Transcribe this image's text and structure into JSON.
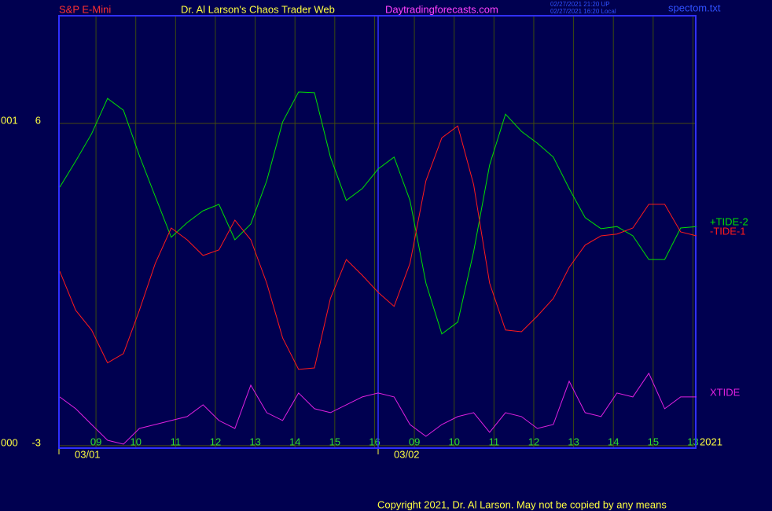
{
  "chart_data": {
    "type": "line",
    "instrument": "S&P E-Mini",
    "title": "Dr. Al Larson's Chaos Trader Web",
    "site": "Daytradingforecasts.com",
    "timestamps": [
      "02/27/2021 21:20 UP",
      "02/27/2021 16:20 Local"
    ],
    "file": "spectom.txt",
    "year": "2021",
    "copyright": "Copyright 2021, Dr. Al Larson. May not be copied by any means",
    "xlim": [
      -0.93,
      15.07
    ],
    "ylim": [
      -3.07,
      9.01
    ],
    "yticks": [
      6,
      -3
    ],
    "axis_codes": [
      {
        "value": 6,
        "label": "001"
      },
      {
        "value": -3,
        "label": "000"
      }
    ],
    "xticks": [
      {
        "value": 0,
        "label": "09"
      },
      {
        "value": 1,
        "label": "10"
      },
      {
        "value": 2,
        "label": "11"
      },
      {
        "value": 3,
        "label": "12"
      },
      {
        "value": 4,
        "label": "13"
      },
      {
        "value": 5,
        "label": "14"
      },
      {
        "value": 6,
        "label": "15"
      },
      {
        "value": 7,
        "label": "16"
      },
      {
        "value": 8,
        "label": "09"
      },
      {
        "value": 9,
        "label": "10"
      },
      {
        "value": 10,
        "label": "11"
      },
      {
        "value": 11,
        "label": "12"
      },
      {
        "value": 12,
        "label": "13"
      },
      {
        "value": 13,
        "label": "14"
      },
      {
        "value": 14,
        "label": "15"
      },
      {
        "value": 15,
        "label": "13"
      }
    ],
    "date_markers": [
      {
        "value": -0.93,
        "label": "03/01"
      },
      {
        "value": 7.09,
        "label": "03/02"
      }
    ],
    "grid": true,
    "x": [
      -0.91,
      -0.51,
      -0.11,
      0.29,
      0.69,
      1.09,
      1.49,
      1.89,
      2.29,
      2.69,
      3.09,
      3.49,
      3.89,
      4.29,
      4.69,
      5.09,
      5.49,
      5.89,
      6.29,
      6.69,
      7.09,
      7.49,
      7.89,
      8.29,
      8.69,
      9.09,
      9.49,
      9.89,
      10.29,
      10.69,
      11.09,
      11.49,
      11.89,
      12.29,
      12.69,
      13.09,
      13.49,
      13.89,
      14.29,
      14.69,
      15.09
    ],
    "series": [
      {
        "name": "+TIDE-2",
        "color": "#00e000",
        "values": [
          4.22,
          4.95,
          5.71,
          6.7,
          6.37,
          5.1,
          3.96,
          2.82,
          3.23,
          3.56,
          3.74,
          2.75,
          3.19,
          4.4,
          6.04,
          6.88,
          6.86,
          5.06,
          3.85,
          4.18,
          4.73,
          5.06,
          3.85,
          1.54,
          0.12,
          0.45,
          2.42,
          4.84,
          6.26,
          5.78,
          5.45,
          5.06,
          4.18,
          3.37,
          3.06,
          3.12,
          2.86,
          2.2,
          2.2,
          3.08,
          3.12
        ]
      },
      {
        "name": "-TIDE-1",
        "color": "#ff1a1a",
        "values": [
          1.87,
          0.78,
          0.23,
          -0.69,
          -0.43,
          0.78,
          2.09,
          3.08,
          2.75,
          2.31,
          2.47,
          3.3,
          2.75,
          1.54,
          0.01,
          -0.87,
          -0.83,
          1.11,
          2.2,
          1.76,
          1.28,
          0.89,
          2.09,
          4.4,
          5.6,
          5.93,
          4.29,
          1.54,
          0.23,
          0.18,
          0.62,
          1.11,
          1.98,
          2.6,
          2.86,
          2.91,
          3.08,
          3.74,
          3.74,
          2.97,
          2.86
        ]
      },
      {
        "name": "XTIDE",
        "color": "#e020e0",
        "values": [
          -1.64,
          -1.97,
          -2.41,
          -2.85,
          -2.96,
          -2.52,
          -2.41,
          -2.3,
          -2.19,
          -1.86,
          -2.3,
          -2.52,
          -1.31,
          -2.08,
          -2.3,
          -1.53,
          -1.97,
          -2.08,
          -1.86,
          -1.64,
          -1.53,
          -1.64,
          -2.41,
          -2.74,
          -2.41,
          -2.19,
          -2.08,
          -2.63,
          -2.08,
          -2.19,
          -2.52,
          -2.41,
          -1.2,
          -2.08,
          -2.19,
          -1.53,
          -1.64,
          -0.98,
          -1.97,
          -1.64,
          -1.64
        ]
      }
    ]
  }
}
